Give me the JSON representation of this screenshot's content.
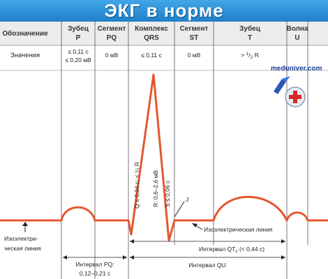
{
  "title": "ЭКГ в норме",
  "header": {
    "designation": "Обозначение",
    "p_wave": [
      "Зубец",
      "P"
    ],
    "pq_segment": [
      "Сегмент",
      "PQ"
    ],
    "qrs_complex": [
      "Комплекс",
      "QRS"
    ],
    "st_segment": [
      "Сегмент",
      "ST"
    ],
    "t_wave": [
      "Зубец",
      "T"
    ],
    "u_wave": [
      "Волна",
      "U"
    ]
  },
  "values_row": {
    "label": "Значения",
    "p": [
      "≤ 0,11 с",
      "≤ 0,20 мВ"
    ],
    "pq": "0 мВ",
    "qrs": "≤ 0,11 с",
    "st": "0 мВ",
    "t_prefix": "> ",
    "t_num": "1",
    "t_slash": "/",
    "t_den": "2",
    "t_suffix": " R"
  },
  "annotations": {
    "q": "Q ≤ 0,04 с; < ¼ R",
    "r": "R: 0,6–2,6 мВ",
    "s": "S ≤ 0,06 с",
    "j": "J",
    "isoelectric_right": "Изоэлектрическая линия",
    "isoelectric_left": [
      "Изоэлектри-",
      "ческая линия"
    ],
    "qt_prefix": "Интервал QT",
    "qt_sub": "c",
    "qt_suffix": " (< 0,44 с)",
    "pq_interval": [
      "Интервал PQ:",
      "0,12–0,21 с"
    ],
    "qu_interval": "Интервал QU"
  },
  "logo": {
    "text": "meduniver.com",
    "icon": "medical-cross-icon"
  },
  "colors": {
    "title_bg": "#2b8fd6",
    "trace": "#e4572e",
    "grid": "#555555",
    "header_bg": "#ececec"
  }
}
